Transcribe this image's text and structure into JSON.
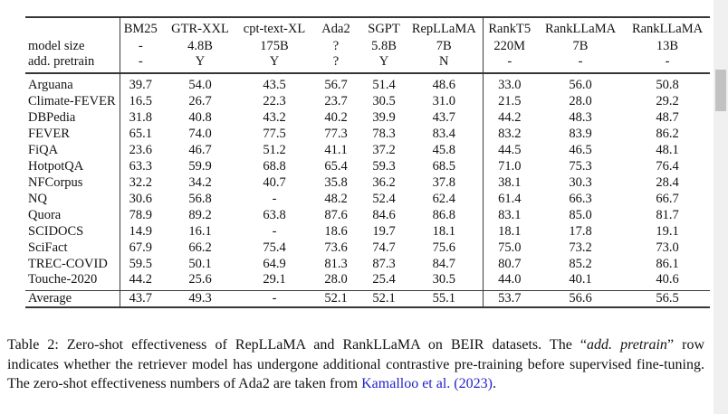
{
  "table": {
    "header": {
      "row_labels": [
        "",
        "model size",
        "add. pretrain"
      ],
      "columns": [
        {
          "name": "BM25",
          "size": "-",
          "pretrain": "-"
        },
        {
          "name": "GTR-XXL",
          "size": "4.8B",
          "pretrain": "Y"
        },
        {
          "name": "cpt-text-XL",
          "size": "175B",
          "pretrain": "Y"
        },
        {
          "name": "Ada2",
          "size": "?",
          "pretrain": "?"
        },
        {
          "name": "SGPT",
          "size": "5.8B",
          "pretrain": "Y"
        },
        {
          "name": "RepLLaMA",
          "size": "7B",
          "pretrain": "N"
        },
        {
          "name": "RankT5",
          "size": "220M",
          "pretrain": "-"
        },
        {
          "name": "RankLLaMA",
          "size": "7B",
          "pretrain": "-"
        },
        {
          "name": "RankLLaMA",
          "size": "13B",
          "pretrain": "-"
        }
      ]
    },
    "rows": [
      {
        "dataset": "Arguana",
        "values": [
          "39.7",
          "54.0",
          "43.5",
          "56.7",
          "51.4",
          "48.6",
          "33.0",
          "56.0",
          "50.8"
        ]
      },
      {
        "dataset": "Climate-FEVER",
        "values": [
          "16.5",
          "26.7",
          "22.3",
          "23.7",
          "30.5",
          "31.0",
          "21.5",
          "28.0",
          "29.2"
        ]
      },
      {
        "dataset": "DBPedia",
        "values": [
          "31.8",
          "40.8",
          "43.2",
          "40.2",
          "39.9",
          "43.7",
          "44.2",
          "48.3",
          "48.7"
        ]
      },
      {
        "dataset": "FEVER",
        "values": [
          "65.1",
          "74.0",
          "77.5",
          "77.3",
          "78.3",
          "83.4",
          "83.2",
          "83.9",
          "86.2"
        ]
      },
      {
        "dataset": "FiQA",
        "values": [
          "23.6",
          "46.7",
          "51.2",
          "41.1",
          "37.2",
          "45.8",
          "44.5",
          "46.5",
          "48.1"
        ]
      },
      {
        "dataset": "HotpotQA",
        "values": [
          "63.3",
          "59.9",
          "68.8",
          "65.4",
          "59.3",
          "68.5",
          "71.0",
          "75.3",
          "76.4"
        ]
      },
      {
        "dataset": "NFCorpus",
        "values": [
          "32.2",
          "34.2",
          "40.7",
          "35.8",
          "36.2",
          "37.8",
          "38.1",
          "30.3",
          "28.4"
        ]
      },
      {
        "dataset": "NQ",
        "values": [
          "30.6",
          "56.8",
          "-",
          "48.2",
          "52.4",
          "62.4",
          "61.4",
          "66.3",
          "66.7"
        ]
      },
      {
        "dataset": "Quora",
        "values": [
          "78.9",
          "89.2",
          "63.8",
          "87.6",
          "84.6",
          "86.8",
          "83.1",
          "85.0",
          "81.7"
        ]
      },
      {
        "dataset": "SCIDOCS",
        "values": [
          "14.9",
          "16.1",
          "-",
          "18.6",
          "19.7",
          "18.1",
          "18.1",
          "17.8",
          "19.1"
        ]
      },
      {
        "dataset": "SciFact",
        "values": [
          "67.9",
          "66.2",
          "75.4",
          "73.6",
          "74.7",
          "75.6",
          "75.0",
          "73.2",
          "73.0"
        ]
      },
      {
        "dataset": "TREC-COVID",
        "values": [
          "59.5",
          "50.1",
          "64.9",
          "81.3",
          "87.3",
          "84.7",
          "80.7",
          "85.2",
          "86.1"
        ]
      },
      {
        "dataset": "Touche-2020",
        "values": [
          "44.2",
          "25.6",
          "29.1",
          "28.0",
          "25.4",
          "30.5",
          "44.0",
          "40.1",
          "40.6"
        ]
      }
    ],
    "average": {
      "label": "Average",
      "values": [
        "43.7",
        "49.3",
        "-",
        "52.1",
        "52.1",
        "55.1",
        "53.7",
        "56.6",
        "56.5"
      ],
      "bold_indexes": [
        5,
        7
      ]
    }
  },
  "caption": {
    "line1_pre": "Table 2: Zero-shot effectiveness of RepLLaMA and RankLLaMA on BEIR datasets. The “",
    "line1_italic": "add. pretrain",
    "line1_post": "” row",
    "line2": "indicates whether the retriever model has undergone additional contrastive pre-training before supervised fine-tuning.",
    "line3_pre": "The zero-shot effectiveness numbers of Ada2 are taken from ",
    "line3_link": "Kamalloo et al. (2023)",
    "line3_post": ".",
    "link_color": "#2222cc"
  }
}
